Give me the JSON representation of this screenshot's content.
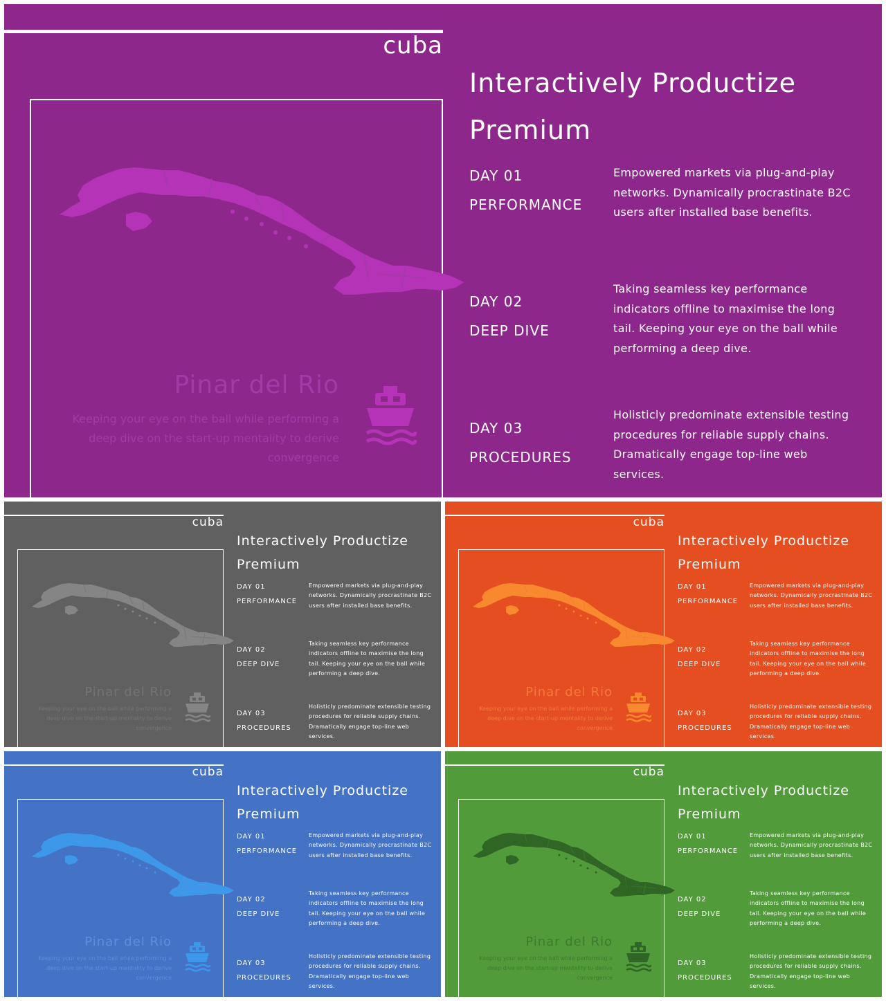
{
  "slides": [
    {
      "id": "purple",
      "bg": "#8e278b",
      "map_color": "#b433b7",
      "muted_color": "#a03ca6",
      "country": "cuba",
      "headline_line1": "Interactively Productize",
      "headline_line2": "Premium",
      "region_title": "Pinar del Rio",
      "region_text": "Keeping your eye on the ball while performing a deep dive on the start-up mentality to derive convergence",
      "ship_icon": "ship-icon",
      "days": [
        {
          "day": "DAY  01",
          "topic": "PERFORMANCE",
          "text": "Empowered markets via plug-and-play networks. Dynamically procrastinate B2C users after installed base benefits."
        },
        {
          "day": "DAY  02",
          "topic": "DEEP  DIVE",
          "text": "Taking seamless key performance indicators offline to maximise the long tail. Keeping your eye on the ball while performing a deep dive."
        },
        {
          "day": "DAY  03",
          "topic": "PROCEDURES",
          "text": "Holisticly predominate extensible testing procedures for reliable supply chains. Dramatically engage top-line web services."
        }
      ]
    },
    {
      "id": "gray",
      "bg": "#606060",
      "map_color": "#858585",
      "muted_color": "#747474",
      "country": "cuba",
      "headline_line1": "Interactively Productize",
      "headline_line2": "Premium",
      "region_title": "Pinar del Rio",
      "region_text": "Keeping your eye on the ball while performing a deep dive on the start-up mentality to derive convergence",
      "ship_icon": "ship-icon",
      "days": [
        {
          "day": "DAY  01",
          "topic": "PERFORMANCE",
          "text": "Empowered markets via plug-and-play networks. Dynamically procrastinate B2C users after installed base benefits."
        },
        {
          "day": "DAY  02",
          "topic": "DEEP  DIVE",
          "text": "Taking seamless key performance indicators offline to maximise the long tail. Keeping your eye on the ball while performing a deep dive."
        },
        {
          "day": "DAY  03",
          "topic": "PROCEDURES",
          "text": "Holisticly predominate extensible testing procedures for reliable supply chains. Dramatically engage top-line web services."
        }
      ]
    },
    {
      "id": "orange",
      "bg": "#e54e20",
      "map_color": "#f9892e",
      "muted_color": "#f47a3b",
      "country": "cuba",
      "headline_line1": "Interactively Productize",
      "headline_line2": "Premium",
      "region_title": "Pinar del Rio",
      "region_text": "Keeping your eye on the ball while performing a deep dive on the start-up mentality to derive convergence",
      "ship_icon": "ship-icon",
      "days": [
        {
          "day": "DAY  01",
          "topic": "PERFORMANCE",
          "text": "Empowered markets via plug-and-play networks. Dynamically procrastinate B2C users after installed base benefits."
        },
        {
          "day": "DAY  02",
          "topic": "DEEP  DIVE",
          "text": "Taking seamless key performance indicators offline to maximise the long tail. Keeping your eye on the ball while performing a deep dive."
        },
        {
          "day": "DAY  03",
          "topic": "PROCEDURES",
          "text": "Holisticly predominate extensible testing procedures for reliable supply chains. Dramatically engage top-line web services."
        }
      ]
    },
    {
      "id": "blue",
      "bg": "#4472c4",
      "map_color": "#3d98ea",
      "muted_color": "#5c8fdd",
      "country": "cuba",
      "headline_line1": "Interactively Productize",
      "headline_line2": "Premium",
      "region_title": "Pinar del Rio",
      "region_text": "Keeping your eye on the ball while performing a deep dive on the start-up mentality to derive convergence",
      "ship_icon": "ship-icon",
      "days": [
        {
          "day": "DAY  01",
          "topic": "PERFORMANCE",
          "text": "Empowered markets via plug-and-play networks. Dynamically procrastinate B2C users after installed base benefits."
        },
        {
          "day": "DAY  02",
          "topic": "DEEP  DIVE",
          "text": "Taking seamless key performance indicators offline to maximise the long tail. Keeping your eye on the ball while performing a deep dive."
        },
        {
          "day": "DAY  03",
          "topic": "PROCEDURES",
          "text": "Holisticly predominate extensible testing procedures for reliable supply chains. Dramatically engage top-line web services."
        }
      ]
    },
    {
      "id": "green",
      "bg": "#519b3a",
      "map_color": "#2f6625",
      "muted_color": "#3e7a2e",
      "country": "cuba",
      "headline_line1": "Interactively Productize",
      "headline_line2": "Premium",
      "region_title": "Pinar del Rio",
      "region_text": "Keeping your eye on the ball while performing a deep dive on the start-up mentality to derive convergence",
      "ship_icon": "ship-icon",
      "days": [
        {
          "day": "DAY  01",
          "topic": "PERFORMANCE",
          "text": "Empowered markets via plug-and-play networks. Dynamically procrastinate B2C users after installed base benefits."
        },
        {
          "day": "DAY  02",
          "topic": "DEEP  DIVE",
          "text": "Taking seamless key performance indicators offline to maximise the long tail. Keeping your eye on the ball while performing a deep dive."
        },
        {
          "day": "DAY  03",
          "topic": "PROCEDURES",
          "text": "Holisticly predominate extensible testing procedures for reliable supply chains. Dramatically engage top-line web services."
        }
      ]
    }
  ]
}
